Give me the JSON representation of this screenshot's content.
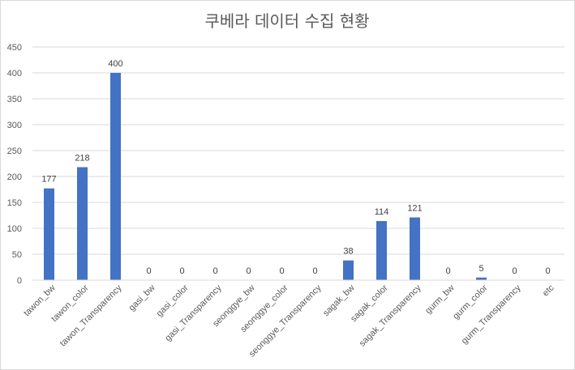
{
  "chart_data": {
    "type": "bar",
    "title": "쿠베라 데이터 수집 현황",
    "categories": [
      "tawon_bw",
      "tawon_color",
      "tawon_Transparency",
      "gasi_bw",
      "gasi_color",
      "gasi_Transparency",
      "seonggye_bw",
      "seonggye_color",
      "seonggye_Transparency",
      "sagak_bw",
      "sagak_color",
      "sagak_Transparency",
      "gurm_bw",
      "gurm_color",
      "gurm_Transparency",
      "etc"
    ],
    "values": [
      177,
      218,
      400,
      0,
      0,
      0,
      0,
      0,
      0,
      38,
      114,
      121,
      0,
      5,
      0,
      0
    ],
    "ylim": [
      0,
      450
    ],
    "yticks": [
      0,
      50,
      100,
      150,
      200,
      250,
      300,
      350,
      400,
      450
    ],
    "grid": true,
    "data_labels": true,
    "legend": "none",
    "bar_color": "#4472c4",
    "grid_color": "#d9d9d9"
  }
}
